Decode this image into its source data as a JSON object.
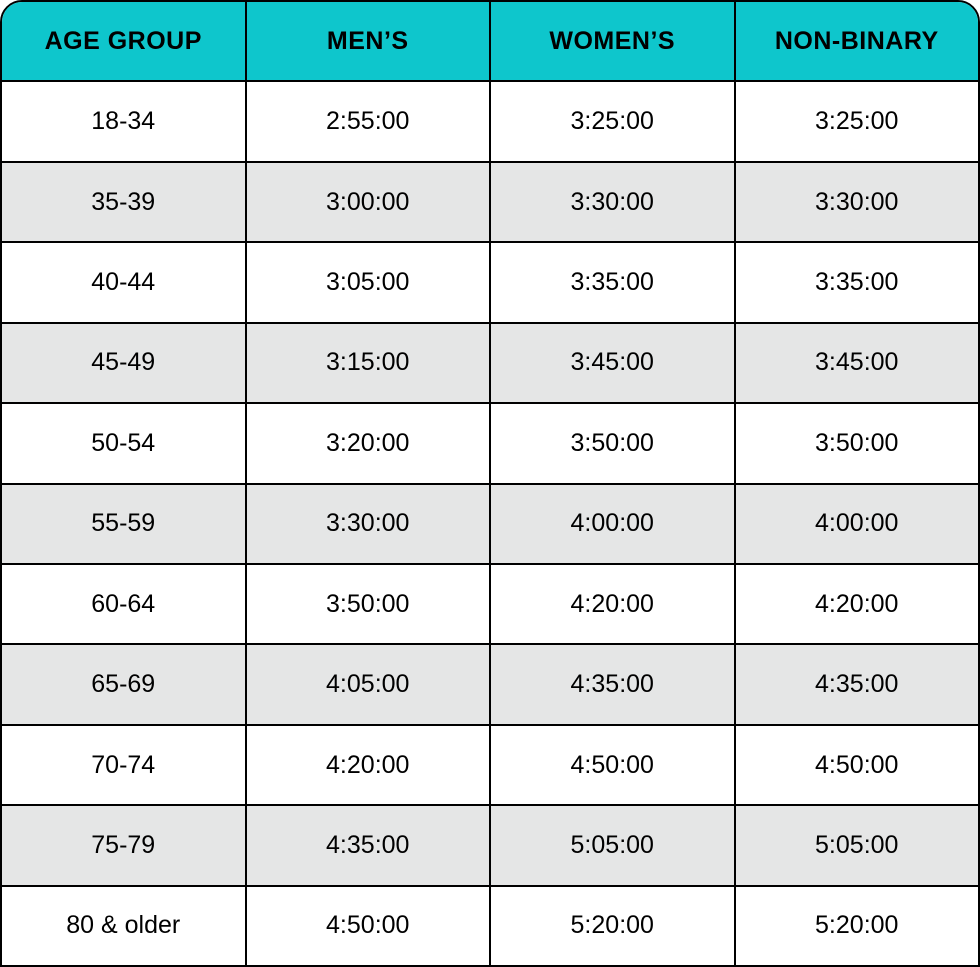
{
  "table": {
    "colors": {
      "header_bg": "#0ec6cc",
      "row_bg": "#ffffff",
      "row_alt_bg": "#e5e6e6",
      "border": "#000000",
      "text": "#000000"
    },
    "columns": [
      "AGE GROUP",
      "MEN’S",
      "WOMEN’S",
      "NON-BINARY"
    ],
    "rows": [
      [
        "18-34",
        "2:55:00",
        "3:25:00",
        "3:25:00"
      ],
      [
        "35-39",
        "3:00:00",
        "3:30:00",
        "3:30:00"
      ],
      [
        "40-44",
        "3:05:00",
        "3:35:00",
        "3:35:00"
      ],
      [
        "45-49",
        "3:15:00",
        "3:45:00",
        "3:45:00"
      ],
      [
        "50-54",
        "3:20:00",
        "3:50:00",
        "3:50:00"
      ],
      [
        "55-59",
        "3:30:00",
        "4:00:00",
        "4:00:00"
      ],
      [
        "60-64",
        "3:50:00",
        "4:20:00",
        "4:20:00"
      ],
      [
        "65-69",
        "4:05:00",
        "4:35:00",
        "4:35:00"
      ],
      [
        "70-74",
        "4:20:00",
        "4:50:00",
        "4:50:00"
      ],
      [
        "75-79",
        "4:35:00",
        "5:05:00",
        "5:05:00"
      ],
      [
        "80 & older",
        "4:50:00",
        "5:20:00",
        "5:20:00"
      ]
    ],
    "header_fontsize": 25,
    "cell_fontsize": 25,
    "border_radius_top": 22
  }
}
